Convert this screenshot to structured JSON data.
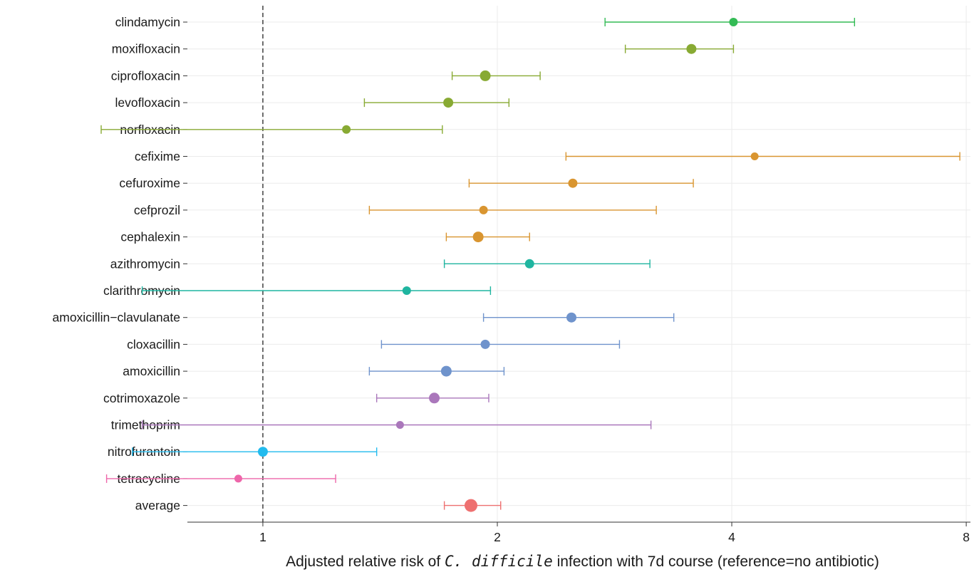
{
  "chart_data": {
    "type": "forest",
    "xlabel_parts": [
      "Adjusted relative risk of ",
      "C. difficile",
      " infection with 7d course (reference=no antibiotic)"
    ],
    "x_scale": "log2",
    "xlim": [
      0.8,
      8.1
    ],
    "x_ticks": [
      1,
      2,
      4,
      8
    ],
    "x_tick_labels": [
      "1",
      "2",
      "4",
      "8"
    ],
    "reference_line": 1,
    "grid": "light vertical and horizontal",
    "legend": "none",
    "rows": [
      {
        "label": "clindamycin",
        "estimate": 4.02,
        "lower": 2.75,
        "upper": 5.75,
        "color": "#33bb55",
        "size": 6
      },
      {
        "label": "moxifloxacin",
        "estimate": 3.55,
        "lower": 2.92,
        "upper": 4.02,
        "color": "#88aa33",
        "size": 7
      },
      {
        "label": "ciprofloxacin",
        "estimate": 1.93,
        "lower": 1.75,
        "upper": 2.27,
        "color": "#88aa33",
        "size": 7.5
      },
      {
        "label": "levofloxacin",
        "estimate": 1.73,
        "lower": 1.35,
        "upper": 2.07,
        "color": "#88aa33",
        "size": 7
      },
      {
        "label": "norfloxacin",
        "estimate": 1.28,
        "lower": 0.62,
        "upper": 1.7,
        "color": "#88aa33",
        "size": 6
      },
      {
        "label": "cefixime",
        "estimate": 4.28,
        "lower": 2.45,
        "upper": 7.85,
        "color": "#d99530",
        "size": 5.5
      },
      {
        "label": "cefuroxime",
        "estimate": 2.5,
        "lower": 1.84,
        "upper": 3.57,
        "color": "#d99530",
        "size": 6.5
      },
      {
        "label": "cefprozil",
        "estimate": 1.92,
        "lower": 1.37,
        "upper": 3.2,
        "color": "#d99530",
        "size": 6
      },
      {
        "label": "cephalexin",
        "estimate": 1.89,
        "lower": 1.72,
        "upper": 2.2,
        "color": "#d99530",
        "size": 7.5
      },
      {
        "label": "azithromycin",
        "estimate": 2.2,
        "lower": 1.71,
        "upper": 3.14,
        "color": "#1fb5a0",
        "size": 6.5
      },
      {
        "label": "clarithromycin",
        "estimate": 1.53,
        "lower": 0.7,
        "upper": 1.96,
        "color": "#1fb5a0",
        "size": 6
      },
      {
        "label": "amoxicillin−clavulanate",
        "estimate": 2.49,
        "lower": 1.92,
        "upper": 3.37,
        "color": "#6f93cc",
        "size": 7
      },
      {
        "label": "cloxacillin",
        "estimate": 1.93,
        "lower": 1.42,
        "upper": 2.87,
        "color": "#6f93cc",
        "size": 6.5
      },
      {
        "label": "amoxicillin",
        "estimate": 1.72,
        "lower": 1.37,
        "upper": 2.04,
        "color": "#6f93cc",
        "size": 7.5
      },
      {
        "label": "cotrimoxazole",
        "estimate": 1.66,
        "lower": 1.4,
        "upper": 1.95,
        "color": "#aa77bb",
        "size": 7.5
      },
      {
        "label": "trimethoprim",
        "estimate": 1.5,
        "lower": 0.7,
        "upper": 3.15,
        "color": "#aa77bb",
        "size": 5.5
      },
      {
        "label": "nitrofurantoin",
        "estimate": 1.0,
        "lower": 0.68,
        "upper": 1.4,
        "color": "#22bbee",
        "size": 7
      },
      {
        "label": "tetracycline",
        "estimate": 0.93,
        "lower": 0.63,
        "upper": 1.24,
        "color": "#ee66aa",
        "size": 5.5
      },
      {
        "label": "average",
        "estimate": 1.85,
        "lower": 1.71,
        "upper": 2.02,
        "color": "#ee7070",
        "size": 9
      }
    ]
  }
}
